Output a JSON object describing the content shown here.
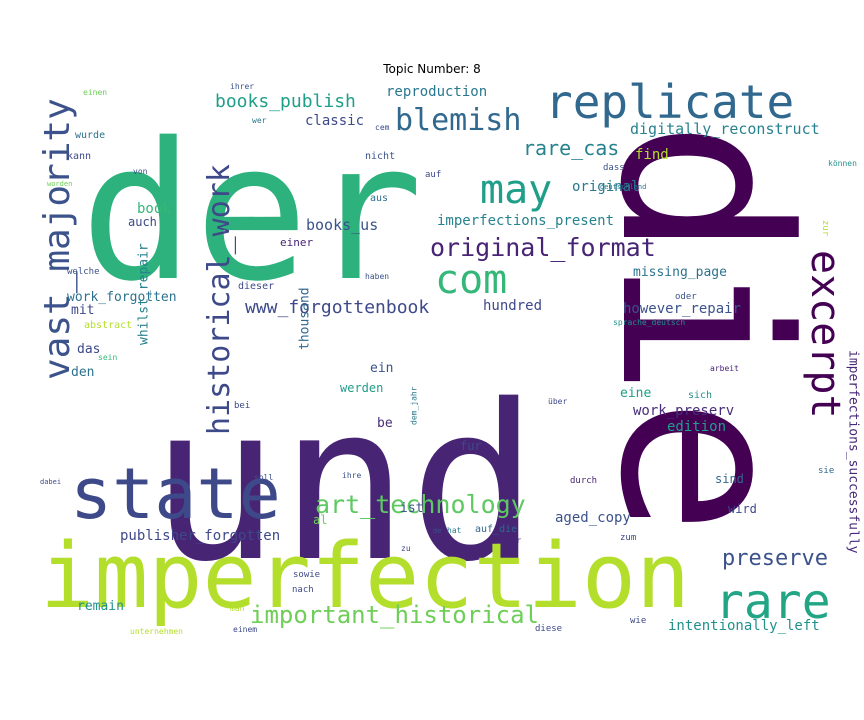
{
  "title": "Topic Number: 8",
  "words": [
    {
      "t": "der",
      "c": "#2db27d"
    },
    {
      "t": "und",
      "c": "#482475"
    },
    {
      "t": "die",
      "c": "#440154"
    },
    {
      "t": "imperfection",
      "c": "#b4de2c"
    },
    {
      "t": "state",
      "c": "#3e4989"
    },
    {
      "t": "replicate",
      "c": "#31688e"
    },
    {
      "t": "vast_majority",
      "c": "#3b528b"
    },
    {
      "t": "historical_work",
      "c": "#3e4989"
    },
    {
      "t": "excerpt",
      "c": "#440154"
    },
    {
      "t": "may",
      "c": "#1f9e89"
    },
    {
      "t": "com",
      "c": "#35b779"
    },
    {
      "t": "rare",
      "c": "#21a585"
    },
    {
      "t": "original_format",
      "c": "#482475"
    },
    {
      "t": "blemish",
      "c": "#31688e"
    },
    {
      "t": "art_technology",
      "c": "#5ec962"
    },
    {
      "t": "important_historical",
      "c": "#6ece58"
    },
    {
      "t": "preserve",
      "c": "#3b528b"
    },
    {
      "t": "www_forgottenbook",
      "c": "#3e4989"
    },
    {
      "t": "books_publish",
      "c": "#1f9e89"
    },
    {
      "t": "digitally_reconstruct",
      "c": "#26828e"
    },
    {
      "t": "imperfections_successfully",
      "c": "#482878"
    },
    {
      "t": "rare_cas",
      "c": "#26828e"
    },
    {
      "t": "reproduction",
      "c": "#2a788e"
    },
    {
      "t": "classic",
      "c": "#3e4989"
    },
    {
      "t": "original",
      "c": "#2a788e"
    },
    {
      "t": "find",
      "c": "#b4de2c"
    },
    {
      "t": "imperfections_present",
      "c": "#26828e"
    },
    {
      "t": "books_us",
      "c": "#3b528b"
    },
    {
      "t": "book",
      "c": "#35b779"
    },
    {
      "t": "missing_page",
      "c": "#2c728e"
    },
    {
      "t": "work_forgotten",
      "c": "#2c728e"
    },
    {
      "t": "hundred",
      "c": "#3e4989"
    },
    {
      "t": "however_repair",
      "c": "#3b528b"
    },
    {
      "t": "publisher_forgotten",
      "c": "#3e4989"
    },
    {
      "t": "aged_copy",
      "c": "#3b528b"
    },
    {
      "t": "intentionally_left",
      "c": "#21918c"
    },
    {
      "t": "work_preserv",
      "c": "#472d7b"
    },
    {
      "t": "edition",
      "c": "#1f9e89"
    },
    {
      "t": "whilst_repair",
      "c": "#26828e"
    },
    {
      "t": "thousand",
      "c": "#31688e"
    },
    {
      "t": "remain",
      "c": "#21918c"
    },
    {
      "t": "eine",
      "c": "#1f9e89"
    },
    {
      "t": "das",
      "c": "#3e4989"
    },
    {
      "t": "den",
      "c": "#2c728e"
    },
    {
      "t": "mit",
      "c": "#3e4989"
    },
    {
      "t": "werden",
      "c": "#1f9e89"
    },
    {
      "t": "ist",
      "c": "#3b528b"
    },
    {
      "t": "be",
      "c": "#472d7b"
    },
    {
      "t": "ein",
      "c": "#3b528b"
    },
    {
      "t": "fur",
      "c": "#3e4989"
    },
    {
      "t": "sind",
      "c": "#31688e"
    },
    {
      "t": "wird",
      "c": "#3e4989"
    },
    {
      "t": "auch",
      "c": "#3e4989"
    },
    {
      "t": "al",
      "c": "#6ece58"
    },
    {
      "t": "einer",
      "c": "#482475"
    },
    {
      "t": "abstract",
      "c": "#b4de2c"
    },
    {
      "t": "einen",
      "c": "#6ece58"
    },
    {
      "t": "ihrer",
      "c": "#3b528b"
    },
    {
      "t": "wurde",
      "c": "#2c728e"
    },
    {
      "t": "wer",
      "c": "#2a788e"
    },
    {
      "t": "cem",
      "c": "#3e4989"
    },
    {
      "t": "kann",
      "c": "#3e4989"
    },
    {
      "t": "nicht",
      "c": "#3b528b"
    },
    {
      "t": "dass",
      "c": "#3b528b"
    },
    {
      "t": "können",
      "c": "#21918c"
    },
    {
      "t": "von",
      "c": "#3e4989"
    },
    {
      "t": "auf",
      "c": "#3e4989"
    },
    {
      "t": "worden",
      "c": "#6ece58"
    },
    {
      "t": "aus",
      "c": "#2c728e"
    },
    {
      "t": "deutschland",
      "c": "#2a788e"
    },
    {
      "t": "zur",
      "c": "#b4de2c"
    },
    {
      "t": "welche",
      "c": "#3b528b"
    },
    {
      "t": "haben",
      "c": "#3b528b"
    },
    {
      "t": "dieser",
      "c": "#3e4989"
    },
    {
      "t": "oder",
      "c": "#3b528b"
    },
    {
      "t": "sprache_deutsch",
      "c": "#21918c"
    },
    {
      "t": "sein",
      "c": "#35b779"
    },
    {
      "t": "arbeit",
      "c": "#482475"
    },
    {
      "t": "sich",
      "c": "#21918c"
    },
    {
      "t": "bei",
      "c": "#3e4989"
    },
    {
      "t": "über",
      "c": "#3e4989"
    },
    {
      "t": "dem_jahr",
      "c": "#2a788e"
    },
    {
      "t": "soll",
      "c": "#3b528b"
    },
    {
      "t": "ihre",
      "c": "#3b528b"
    },
    {
      "t": "durch",
      "c": "#482475"
    },
    {
      "t": "sie",
      "c": "#31688e"
    },
    {
      "t": "dabei",
      "c": "#3e4989"
    },
    {
      "t": "de",
      "c": "#3b528b"
    },
    {
      "t": "hat",
      "c": "#2a788e"
    },
    {
      "t": "auf_die",
      "c": "#31688e"
    },
    {
      "t": "unter",
      "c": "#482475"
    },
    {
      "t": "zu",
      "c": "#3e4989"
    },
    {
      "t": "zum",
      "c": "#3e4989"
    },
    {
      "t": "sowie",
      "c": "#3e4989"
    },
    {
      "t": "nach",
      "c": "#3e4989"
    },
    {
      "t": "man",
      "c": "#b4de2c"
    },
    {
      "t": "wie",
      "c": "#3e4989"
    },
    {
      "t": "unternehmen",
      "c": "#b4de2c"
    },
    {
      "t": "einem",
      "c": "#3e4989"
    },
    {
      "t": "diese",
      "c": "#3e4989"
    }
  ]
}
